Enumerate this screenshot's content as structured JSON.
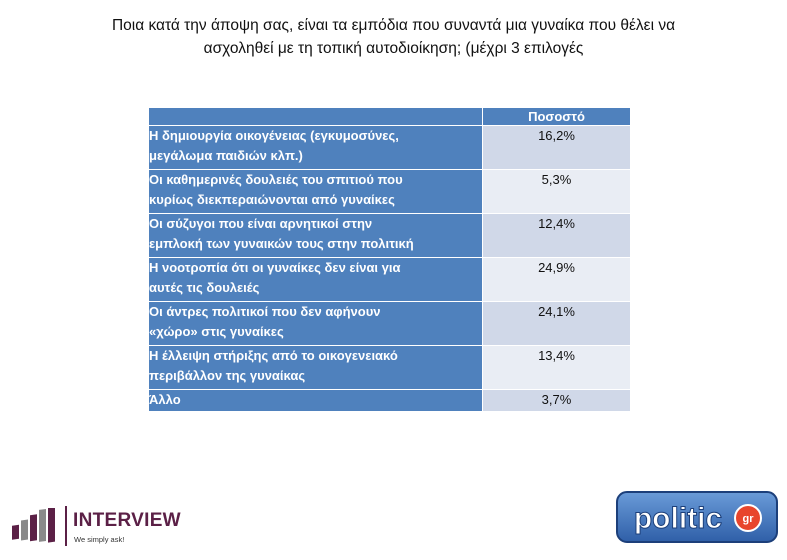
{
  "title": {
    "line1": "Ποια κατά την άποψη σας, είναι τα εμπόδια που συναντά μια γυναίκα που θέλει να",
    "line2": "ασχοληθεί με τη τοπική αυτοδιοίκηση; (μέχρι 3 επιλογές"
  },
  "table": {
    "column_header": "Ποσοστό",
    "rows": [
      {
        "line1": "Η δημιουργία οικογένειας (εγκυμοσύνες,",
        "line2": "μεγάλωμα παιδιών κλπ.)",
        "value": "16,2%"
      },
      {
        "line1": "Οι καθημερινές δουλειές του σπιτιού που",
        "line2": "κυρίως διεκπεραιώνονται από γυναίκες",
        "value": "5,3%"
      },
      {
        "line1": "Οι σύζυγοι που είναι αρνητικοί στην",
        "line2": "εμπλοκή των γυναικών τους στην πολιτική",
        "value": "12,4%"
      },
      {
        "line1": "Η νοοτροπία ότι οι γυναίκες δεν είναι για",
        "line2": "αυτές τις δουλειές",
        "value": "24,9%"
      },
      {
        "line1": "Οι άντρες πολιτικοί που δεν αφήνουν",
        "line2": "«χώρο» στις γυναίκες",
        "value": "24,1%"
      },
      {
        "line1": "Η έλλειψη στήριξης από το οικογενειακό",
        "line2": "περιβάλλον της γυναίκας",
        "value": "13,4%"
      },
      {
        "line1": "Άλλο",
        "line2": "",
        "value": "3,7%"
      }
    ]
  },
  "interview_logo": {
    "name": "INTERVIEW",
    "tagline": "We simply ask!"
  },
  "politic_logo": {
    "text": "politic",
    "badge": "gr"
  },
  "colors": {
    "header_blue": "#4f81bd",
    "row_light": "#d0d8e8",
    "row_lighter": "#e9edf4",
    "interview_purple": "#5b2046"
  }
}
